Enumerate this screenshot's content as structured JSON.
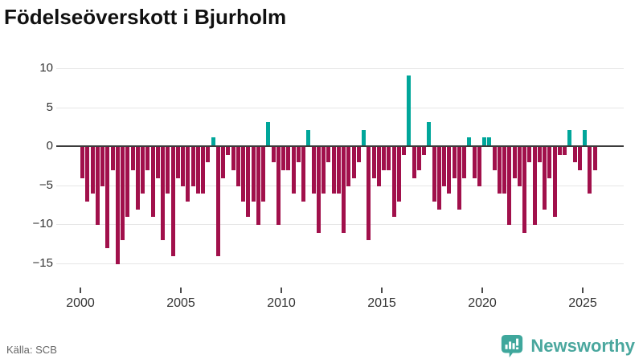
{
  "header": {
    "title": "Födelseöverskott i Bjurholm"
  },
  "footer": {
    "source_label": "Källa: SCB",
    "brand_name": "Newsworthy"
  },
  "colors": {
    "negative_bar": "#a1104b",
    "positive_bar": "#00a69a",
    "brand_teal": "#3fa79c",
    "grid": "#e6e6e6",
    "zero_line": "#3b3b3b",
    "axis_text": "#333333",
    "source_text": "#666666",
    "title_text": "#111111"
  },
  "chart_data": {
    "type": "bar",
    "title": "Födelseöverskott i Bjurholm",
    "xlabel": "",
    "ylabel": "",
    "frequency": "quarterly",
    "start_year": 2000,
    "start_quarter": 1,
    "end_label": "2025 Q3",
    "x_tick_labels": [
      "2000",
      "2005",
      "2010",
      "2015",
      "2020",
      "2025"
    ],
    "x_tick_years": [
      2000,
      2005,
      2010,
      2015,
      2020,
      2025
    ],
    "y_ticks": [
      10,
      5,
      0,
      -5,
      -10,
      -15
    ],
    "y_tick_labels": [
      "10",
      "5",
      "0",
      "−5",
      "−10",
      "−15"
    ],
    "ylim": [
      -16,
      11
    ],
    "grid": true,
    "legend_position": "none",
    "values": [
      -4,
      -7,
      -6,
      -10,
      -5,
      -13,
      -3,
      -15,
      -12,
      -9,
      -3,
      -8,
      -6,
      -3,
      -9,
      -4,
      -12,
      -6,
      -14,
      -4,
      -5,
      -7,
      -5,
      -6,
      -6,
      -2,
      1,
      -14,
      -4,
      -1,
      -3,
      -5,
      -7,
      -9,
      -7,
      -10,
      -7,
      3,
      -2,
      -10,
      -3,
      -3,
      -6,
      -2,
      -7,
      2,
      -6,
      -11,
      -6,
      -2,
      -6,
      -6,
      -11,
      -5,
      -4,
      -2,
      2,
      -12,
      -4,
      -5,
      -3,
      -3,
      -9,
      -7,
      -1,
      9,
      -4,
      -3,
      -1,
      3,
      -7,
      -8,
      -5,
      -6,
      -4,
      -8,
      -4,
      1,
      -4,
      -5,
      1,
      1,
      -3,
      -6,
      -6,
      -10,
      -4,
      -5,
      -11,
      -2,
      -10,
      -2,
      -8,
      -4,
      -9,
      -1,
      -1,
      2,
      -2,
      -3,
      2,
      -6,
      -3
    ]
  }
}
